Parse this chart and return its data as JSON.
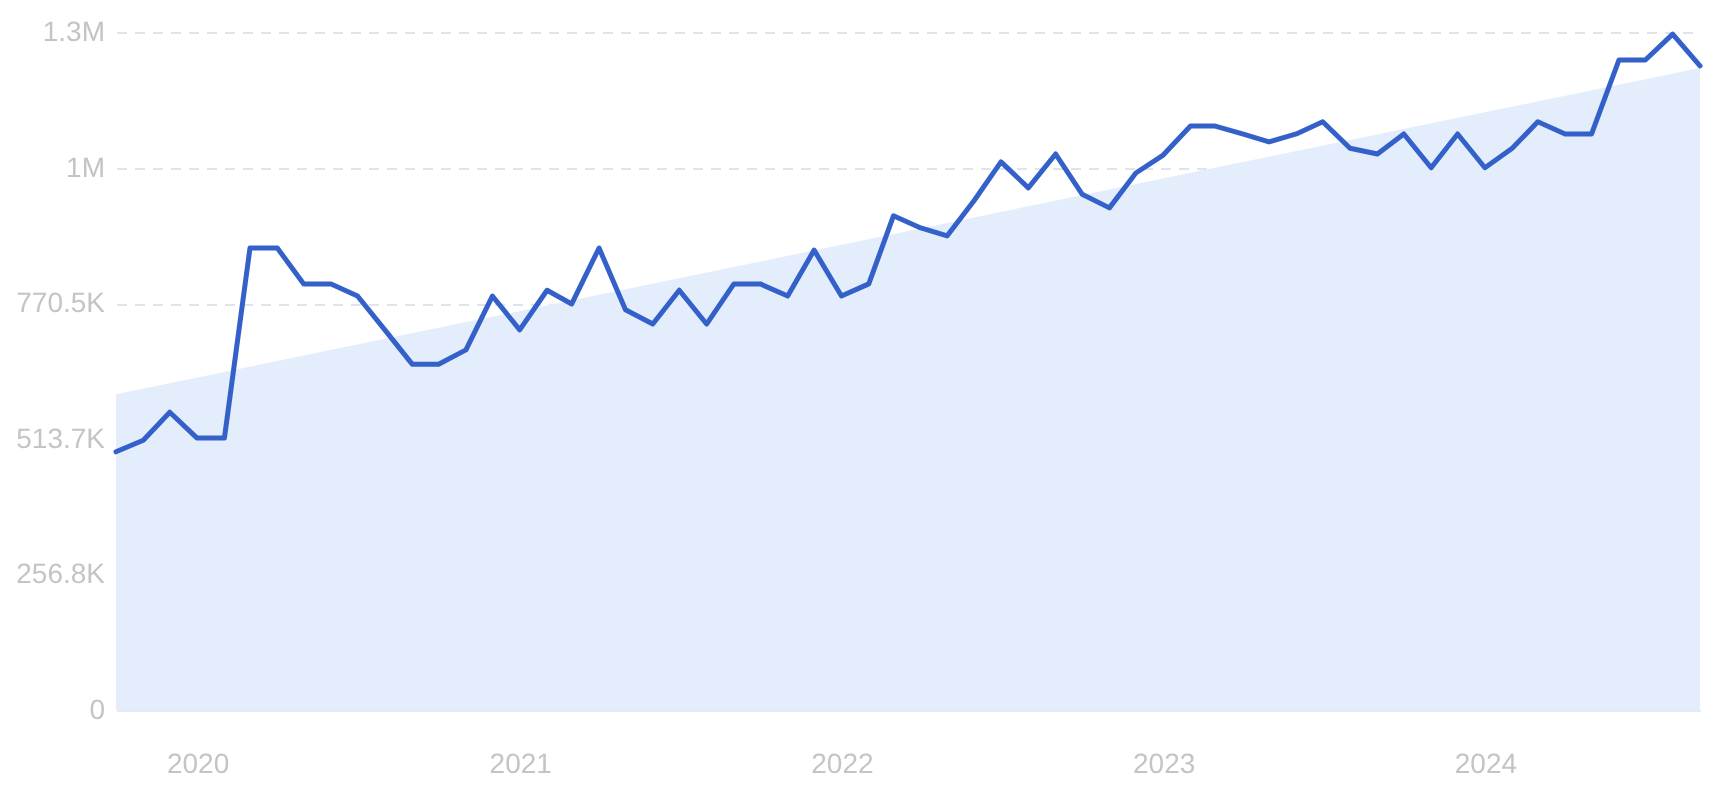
{
  "chart_data": {
    "type": "line",
    "x": [
      "2019-10",
      "2019-11",
      "2019-12",
      "2020-01",
      "2020-02",
      "2020-03",
      "2020-04",
      "2020-05",
      "2020-06",
      "2020-07",
      "2020-08",
      "2020-09",
      "2020-10",
      "2020-11",
      "2020-12",
      "2021-01",
      "2021-02",
      "2021-03",
      "2021-04",
      "2021-05",
      "2021-06",
      "2021-07",
      "2021-08",
      "2021-09",
      "2021-10",
      "2021-11",
      "2021-12",
      "2022-01",
      "2022-02",
      "2022-03",
      "2022-04",
      "2022-05",
      "2022-06",
      "2022-07",
      "2022-08",
      "2022-09",
      "2022-10",
      "2022-11",
      "2022-12",
      "2023-01",
      "2023-02",
      "2023-03",
      "2023-04",
      "2023-05",
      "2023-06",
      "2023-07",
      "2023-08",
      "2023-09",
      "2023-10",
      "2023-11",
      "2023-12",
      "2024-01",
      "2024-02",
      "2024-03",
      "2024-04",
      "2024-05",
      "2024-06",
      "2024-07",
      "2024-08",
      "2024-09"
    ],
    "series": [
      {
        "type": "area",
        "color": "#e3edfb",
        "x": [
          "2019-10",
          "2024-09"
        ],
        "values": [
          598000,
          1216000
        ]
      },
      {
        "type": "line",
        "color": "#3461c9",
        "values": [
          489000,
          511000,
          564000,
          515000,
          515000,
          875000,
          875000,
          807000,
          807000,
          784000,
          720000,
          655000,
          655000,
          682000,
          784000,
          720000,
          795000,
          769000,
          875000,
          758000,
          731000,
          795000,
          731000,
          807000,
          807000,
          784000,
          871000,
          784000,
          807000,
          936000,
          913000,
          898000,
          966000,
          1038000,
          989000,
          1053000,
          977000,
          951000,
          1017000,
          1051000,
          1106000,
          1106000,
          1091000,
          1076000,
          1091000,
          1114000,
          1064000,
          1053000,
          1091000,
          1027000,
          1091000,
          1027000,
          1064000,
          1114000,
          1091000,
          1091000,
          1231000,
          1231000,
          1280000,
          1220000
        ]
      }
    ],
    "xlim": [
      "2019-10",
      "2024-09"
    ],
    "xticks": [
      "2020",
      "2021",
      "2022",
      "2023",
      "2024"
    ],
    "ylim": [
      0,
      1284100
    ],
    "yticks": [
      0,
      {
        "value": 256800,
        "label": "256.8K"
      },
      {
        "value": 513700,
        "label": "513.7K"
      },
      {
        "value": 770500,
        "label": "770.5K"
      },
      {
        "value": 1027300,
        "label": "1M"
      },
      {
        "value": 1284100,
        "label": "1.3M"
      }
    ],
    "grid": "y"
  }
}
